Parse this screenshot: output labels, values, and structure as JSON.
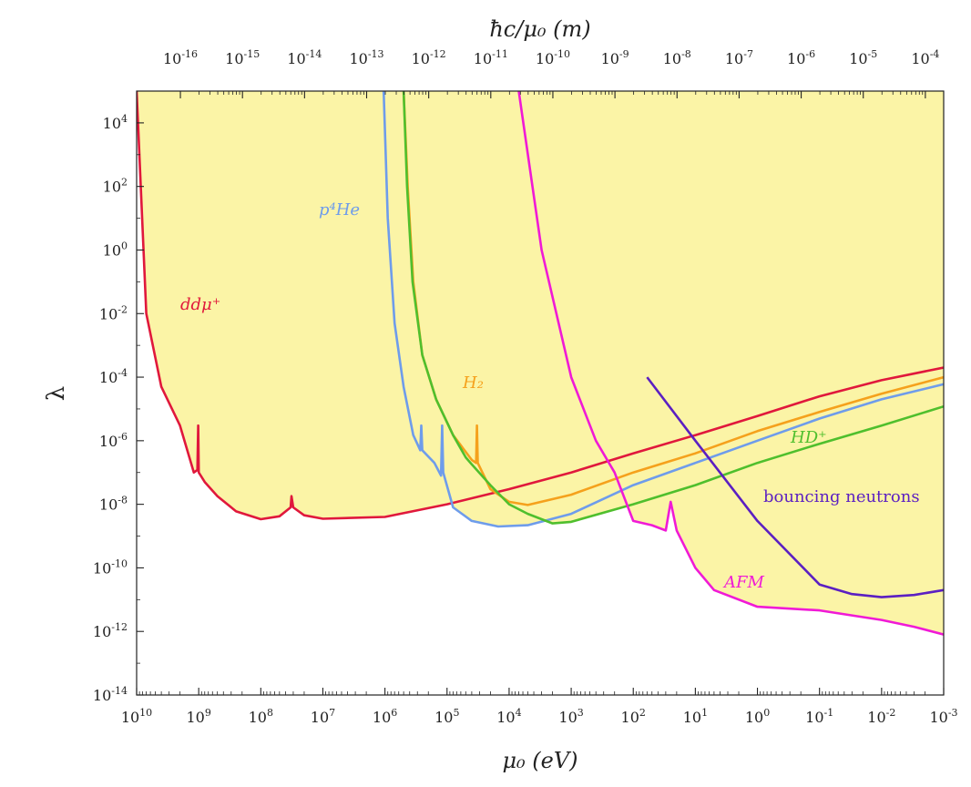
{
  "chart_data": {
    "type": "line",
    "title": "",
    "xlabel": "μ₀ (eV)",
    "top_xlabel": "ħc/μ₀ (m)",
    "ylabel": "λ",
    "x_scale": "log",
    "x_reversed": true,
    "y_scale": "log",
    "xlim_eV": [
      10000000000.0,
      0.001
    ],
    "ylim": [
      1e-14,
      100000.0
    ],
    "x_ticks": [
      {
        "exp": 10,
        "label": "10",
        "sup": "10"
      },
      {
        "exp": 9,
        "label": "10",
        "sup": "9"
      },
      {
        "exp": 8,
        "label": "10",
        "sup": "8"
      },
      {
        "exp": 7,
        "label": "10",
        "sup": "7"
      },
      {
        "exp": 6,
        "label": "10",
        "sup": "6"
      },
      {
        "exp": 5,
        "label": "10",
        "sup": "5"
      },
      {
        "exp": 4,
        "label": "10",
        "sup": "4"
      },
      {
        "exp": 3,
        "label": "10",
        "sup": "3"
      },
      {
        "exp": 2,
        "label": "10",
        "sup": "2"
      },
      {
        "exp": 1,
        "label": "10",
        "sup": "1"
      },
      {
        "exp": 0,
        "label": "10",
        "sup": "0"
      },
      {
        "exp": -1,
        "label": "10",
        "sup": "-1"
      },
      {
        "exp": -2,
        "label": "10",
        "sup": "-2"
      },
      {
        "exp": -3,
        "label": "10",
        "sup": "-3"
      }
    ],
    "top_ticks": [
      {
        "m_exp": -16,
        "label": "10",
        "sup": "-16"
      },
      {
        "m_exp": -15,
        "label": "10",
        "sup": "-15"
      },
      {
        "m_exp": -14,
        "label": "10",
        "sup": "-14"
      },
      {
        "m_exp": -13,
        "label": "10",
        "sup": "-13"
      },
      {
        "m_exp": -12,
        "label": "10",
        "sup": "-12"
      },
      {
        "m_exp": -11,
        "label": "10",
        "sup": "-11"
      },
      {
        "m_exp": -10,
        "label": "10",
        "sup": "-10"
      },
      {
        "m_exp": -9,
        "label": "10",
        "sup": "-9"
      },
      {
        "m_exp": -8,
        "label": "10",
        "sup": "-8"
      },
      {
        "m_exp": -7,
        "label": "10",
        "sup": "-7"
      },
      {
        "m_exp": -6,
        "label": "10",
        "sup": "-6"
      },
      {
        "m_exp": -5,
        "label": "10",
        "sup": "-5"
      },
      {
        "m_exp": -4,
        "label": "10",
        "sup": "-4"
      }
    ],
    "y_ticks": [
      {
        "exp": 4,
        "label": "10",
        "sup": "4"
      },
      {
        "exp": 2,
        "label": "10",
        "sup": "2"
      },
      {
        "exp": 0,
        "label": "10",
        "sup": "0"
      },
      {
        "exp": -2,
        "label": "10",
        "sup": "-2"
      },
      {
        "exp": -4,
        "label": "10",
        "sup": "-4"
      },
      {
        "exp": -6,
        "label": "10",
        "sup": "-6"
      },
      {
        "exp": -8,
        "label": "10",
        "sup": "-8"
      },
      {
        "exp": -10,
        "label": "10",
        "sup": "-10"
      },
      {
        "exp": -12,
        "label": "10",
        "sup": "-12"
      },
      {
        "exp": -14,
        "label": "10",
        "sup": "-14"
      }
    ],
    "shaded_region": {
      "meaning": "excluded",
      "color": "#fbf4a6"
    },
    "series": [
      {
        "name": "ddμ⁺",
        "color": "#e0183c",
        "points": [
          [
            10000000000.0,
            100000.0
          ],
          [
            7000000000.0,
            0.01
          ],
          [
            4000000000.0,
            5e-05
          ],
          [
            2000000000.0,
            3e-06
          ],
          [
            1200000000.0,
            1e-07
          ],
          [
            1050000000.0,
            1.2e-07
          ],
          [
            1020000000.0,
            3e-06
          ],
          [
            1000000000.0,
            1e-07
          ],
          [
            800000000.0,
            5e-08
          ],
          [
            500000000.0,
            1.8e-08
          ],
          [
            250000000.0,
            6e-09
          ],
          [
            100000000.0,
            3.4e-09
          ],
          [
            50000000.0,
            4.2e-09
          ],
          [
            33000000.0,
            8e-09
          ],
          [
            32000000.0,
            1.8e-08
          ],
          [
            30000000.0,
            8e-09
          ],
          [
            20000000.0,
            4.5e-09
          ],
          [
            10000000.0,
            3.5e-09
          ],
          [
            1000000.0,
            4e-09
          ],
          [
            100000.0,
            1e-08
          ],
          [
            10000.0,
            3e-08
          ],
          [
            1000.0,
            1e-07
          ],
          [
            100.0,
            4e-07
          ],
          [
            10.0,
            1.5e-06
          ],
          [
            1,
            6e-06
          ],
          [
            0.1,
            2.5e-05
          ],
          [
            0.01,
            8e-05
          ],
          [
            0.001,
            0.0002
          ]
        ]
      },
      {
        "name": "p⁴He",
        "color": "#6e9ceb",
        "points": [
          [
            1050000.0,
            100000.0
          ],
          [
            900000.0,
            10.0
          ],
          [
            700000.0,
            0.005
          ],
          [
            500000.0,
            5e-05
          ],
          [
            350000.0,
            1.5e-06
          ],
          [
            270000.0,
            5e-07
          ],
          [
            260000.0,
            3e-06
          ],
          [
            250000.0,
            5e-07
          ],
          [
            160000.0,
            2e-07
          ],
          [
            125000.0,
            8e-08
          ],
          [
            120000.0,
            3e-06
          ],
          [
            115000.0,
            1e-07
          ],
          [
            80000.0,
            8e-09
          ],
          [
            40000.0,
            3e-09
          ],
          [
            15000.0,
            2e-09
          ],
          [
            5000.0,
            2.2e-09
          ],
          [
            1000.0,
            5e-09
          ],
          [
            100.0,
            4e-08
          ],
          [
            10.0,
            2e-07
          ],
          [
            1,
            1e-06
          ],
          [
            0.1,
            5e-06
          ],
          [
            0.01,
            2e-05
          ],
          [
            0.001,
            6e-05
          ]
        ]
      },
      {
        "name": "H₂",
        "color": "#f5a11c",
        "points": [
          [
            500000.0,
            100000.0
          ],
          [
            430000.0,
            100.0
          ],
          [
            350000.0,
            0.1
          ],
          [
            250000.0,
            0.0005
          ],
          [
            150000.0,
            2e-05
          ],
          [
            80000.0,
            1.5e-06
          ],
          [
            40000.0,
            2.5e-07
          ],
          [
            34000.0,
            2e-07
          ],
          [
            33000.0,
            3e-06
          ],
          [
            32000.0,
            2e-07
          ],
          [
            20000.0,
            3e-08
          ],
          [
            10000.0,
            1.2e-08
          ],
          [
            5000.0,
            9.5e-09
          ],
          [
            1000.0,
            2e-08
          ],
          [
            100.0,
            1e-07
          ],
          [
            10.0,
            4e-07
          ],
          [
            1,
            2e-06
          ],
          [
            0.1,
            8e-06
          ],
          [
            0.01,
            3e-05
          ],
          [
            0.001,
            0.0001
          ]
        ]
      },
      {
        "name": "HD⁺",
        "color": "#4fbf2d",
        "points": [
          [
            500000.0,
            100000.0
          ],
          [
            440000.0,
            100.0
          ],
          [
            360000.0,
            0.1
          ],
          [
            250000.0,
            0.0005
          ],
          [
            150000.0,
            2e-05
          ],
          [
            80000.0,
            1.5e-06
          ],
          [
            50000.0,
            3e-07
          ],
          [
            40000.0,
            1.8e-07
          ],
          [
            20000.0,
            4e-08
          ],
          [
            10000.0,
            1e-08
          ],
          [
            5000.0,
            5e-09
          ],
          [
            2000.0,
            2.5e-09
          ],
          [
            1000.0,
            2.8e-09
          ],
          [
            100.0,
            1e-08
          ],
          [
            10.0,
            4e-08
          ],
          [
            1,
            2e-07
          ],
          [
            0.1,
            8e-07
          ],
          [
            0.01,
            3e-06
          ],
          [
            0.001,
            1.2e-05
          ]
        ]
      },
      {
        "name": "AFM",
        "color": "#f01ad6",
        "points": [
          [
            7000.0,
            100000.0
          ],
          [
            3000.0,
            1.0
          ],
          [
            1000.0,
            0.0001
          ],
          [
            400.0,
            1e-06
          ],
          [
            200.0,
            1e-07
          ],
          [
            100.0,
            3e-09
          ],
          [
            50.0,
            2.2e-09
          ],
          [
            30.0,
            1.5e-09
          ],
          [
            25.0,
            1.2e-08
          ],
          [
            20.0,
            1.5e-09
          ],
          [
            10.0,
            1e-10
          ],
          [
            5,
            2e-11
          ],
          [
            1,
            6e-12
          ],
          [
            0.1,
            4.6e-12
          ],
          [
            0.03,
            3.2e-12
          ],
          [
            0.01,
            2.3e-12
          ],
          [
            0.003,
            1.4e-12
          ],
          [
            0.001,
            8e-13
          ]
        ]
      },
      {
        "name": "bouncing neutrons",
        "color": "#5b1fc2",
        "points": [
          [
            60.0,
            0.0001
          ],
          [
            10.0,
            1e-06
          ],
          [
            1,
            3e-09
          ],
          [
            0.1,
            3e-11
          ],
          [
            0.03,
            1.5e-11
          ],
          [
            0.01,
            1.2e-11
          ],
          [
            0.003,
            1.4e-11
          ],
          [
            0.001,
            2e-11
          ]
        ]
      }
    ],
    "annotations": [
      {
        "series": "ddμ⁺",
        "text": "ddμ⁺",
        "color": "#e0183c"
      },
      {
        "series": "p⁴He",
        "text": "p⁴He",
        "color": "#6e9ceb"
      },
      {
        "series": "H₂",
        "text": "H₂",
        "color": "#f5a11c"
      },
      {
        "series": "HD⁺",
        "text": "HD⁺",
        "color": "#4fbf2d"
      },
      {
        "series": "AFM",
        "text": "AFM",
        "color": "#f01ad6"
      },
      {
        "series": "bouncing neutrons",
        "text": "bouncing neutrons",
        "color": "#5b1fc2"
      }
    ]
  }
}
